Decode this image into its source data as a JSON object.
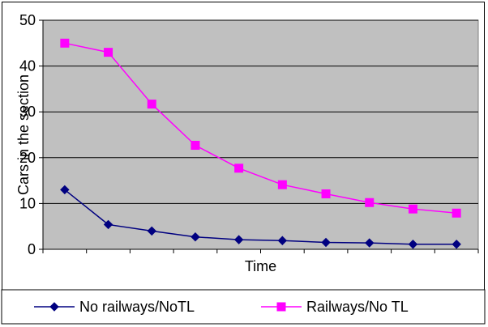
{
  "chart_data": {
    "type": "line",
    "title": "",
    "xlabel": "Time",
    "ylabel": "Cars in the section",
    "ylim": [
      0,
      50
    ],
    "yticks": [
      0,
      10,
      20,
      30,
      40,
      50
    ],
    "ytick_labels": [
      "0",
      "10",
      "20",
      "30",
      "40",
      "50"
    ],
    "x": [
      1,
      2,
      3,
      4,
      5,
      6,
      7,
      8,
      9,
      10
    ],
    "grid": true,
    "plot_background": "#c0c0c0",
    "legend_position": "bottom",
    "series": [
      {
        "name": "No railways/NoTL",
        "values": [
          13,
          5.4,
          4,
          2.7,
          2.1,
          1.9,
          1.5,
          1.4,
          1.1,
          1.1
        ],
        "color": "#000080",
        "marker": "diamond"
      },
      {
        "name": "Railways/No TL",
        "values": [
          45,
          43,
          31.7,
          22.7,
          17.7,
          14.1,
          12.1,
          10.2,
          8.8,
          7.9
        ],
        "color": "#ff00ff",
        "marker": "square"
      }
    ]
  }
}
